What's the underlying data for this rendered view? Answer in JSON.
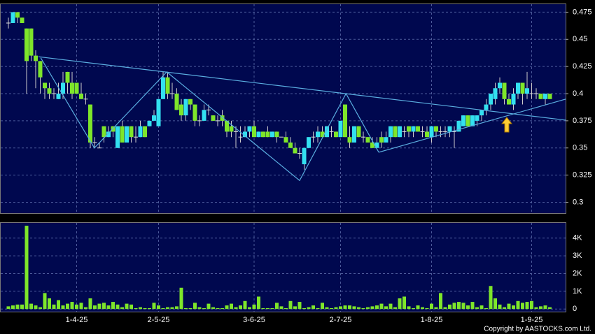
{
  "chart_data": {
    "type": "candlestick",
    "categories": [
      null,
      null,
      null,
      null,
      null,
      null,
      null,
      null,
      null,
      null,
      null,
      null,
      null,
      null,
      null,
      "1-4-25",
      null,
      null,
      null,
      null,
      null,
      null,
      null,
      null,
      null,
      null,
      null,
      null,
      null,
      null,
      null,
      null,
      null,
      "2-5-25",
      null,
      null,
      null,
      null,
      null,
      null,
      null,
      null,
      null,
      null,
      null,
      null,
      null,
      null,
      null,
      null,
      null,
      null,
      null,
      null,
      "3-6-25",
      null,
      null,
      null,
      null,
      null,
      null,
      null,
      null,
      null,
      null,
      null,
      null,
      null,
      null,
      null,
      null,
      null,
      null,
      "2-7-25",
      null,
      null,
      null,
      null,
      null,
      null,
      null,
      null,
      null,
      null,
      null,
      null,
      null,
      null,
      null,
      null,
      null,
      null,
      null,
      "1-8-25",
      null,
      null,
      null,
      null,
      null,
      null,
      null,
      null,
      null,
      null,
      null,
      null,
      null,
      null,
      null,
      null,
      null,
      null,
      null,
      null,
      null,
      "1-9-25",
      null,
      null,
      null,
      null
    ],
    "open": [
      0.465,
      0.465,
      0.475,
      0.47,
      0.46,
      0.46,
      0.435,
      0.43,
      0.41,
      0.405,
      0.4,
      0.395,
      0.4,
      0.42,
      0.41,
      0.41,
      0.4,
      0.395,
      0.39,
      0.355,
      0.35,
      0.37,
      0.36,
      0.37,
      0.35,
      0.37,
      0.355,
      0.37,
      0.36,
      0.36,
      0.37,
      0.37,
      0.375,
      0.37,
      0.395,
      0.415,
      0.4,
      0.4,
      0.39,
      0.38,
      0.395,
      0.39,
      0.375,
      0.375,
      0.385,
      0.38,
      0.375,
      0.38,
      0.375,
      0.37,
      0.365,
      0.36,
      0.36,
      0.365,
      0.37,
      0.36,
      0.365,
      0.365,
      0.36,
      0.365,
      0.36,
      0.36,
      0.355,
      0.35,
      0.345,
      0.335,
      0.35,
      0.36,
      0.36,
      0.365,
      0.36,
      0.365,
      0.365,
      0.36,
      0.39,
      0.36,
      0.355,
      0.37,
      0.36,
      0.36,
      0.355,
      0.35,
      0.36,
      0.355,
      0.36,
      0.37,
      0.36,
      0.365,
      0.37,
      0.365,
      0.37,
      0.365,
      0.365,
      0.36,
      0.37,
      0.365,
      0.365,
      0.365,
      0.365,
      0.365,
      0.37,
      0.38,
      0.37,
      0.375,
      0.38,
      0.385,
      0.39,
      0.395,
      0.405,
      0.41,
      0.395,
      0.39,
      0.4,
      0.41,
      0.4,
      0.4,
      0.4,
      0.4,
      0.395,
      0.4
    ],
    "high": [
      0.47,
      0.475,
      0.475,
      0.47,
      0.46,
      0.46,
      0.44,
      0.43,
      0.41,
      0.41,
      0.405,
      0.41,
      0.42,
      0.42,
      0.42,
      0.41,
      0.41,
      0.4,
      0.39,
      0.36,
      0.355,
      0.37,
      0.37,
      0.37,
      0.37,
      0.375,
      0.37,
      0.37,
      0.37,
      0.375,
      0.37,
      0.375,
      0.385,
      0.395,
      0.42,
      0.42,
      0.41,
      0.405,
      0.395,
      0.395,
      0.395,
      0.39,
      0.38,
      0.39,
      0.39,
      0.38,
      0.38,
      0.385,
      0.375,
      0.375,
      0.37,
      0.37,
      0.37,
      0.37,
      0.375,
      0.365,
      0.365,
      0.37,
      0.365,
      0.365,
      0.36,
      0.365,
      0.36,
      0.355,
      0.35,
      0.35,
      0.36,
      0.365,
      0.37,
      0.37,
      0.37,
      0.37,
      0.365,
      0.375,
      0.39,
      0.37,
      0.37,
      0.37,
      0.365,
      0.36,
      0.36,
      0.36,
      0.365,
      0.365,
      0.37,
      0.37,
      0.37,
      0.37,
      0.37,
      0.37,
      0.37,
      0.37,
      0.37,
      0.37,
      0.37,
      0.37,
      0.37,
      0.37,
      0.37,
      0.375,
      0.38,
      0.38,
      0.38,
      0.38,
      0.385,
      0.395,
      0.4,
      0.41,
      0.415,
      0.41,
      0.4,
      0.405,
      0.41,
      0.41,
      0.42,
      0.41,
      0.405,
      0.4,
      0.4,
      0.4
    ],
    "low": [
      0.46,
      0.465,
      0.465,
      0.465,
      0.4,
      0.43,
      0.405,
      0.4,
      0.395,
      0.395,
      0.395,
      0.395,
      0.395,
      0.4,
      0.395,
      0.4,
      0.395,
      0.39,
      0.35,
      0.35,
      0.35,
      0.355,
      0.36,
      0.36,
      0.35,
      0.355,
      0.355,
      0.355,
      0.355,
      0.36,
      0.36,
      0.37,
      0.375,
      0.37,
      0.395,
      0.395,
      0.395,
      0.385,
      0.375,
      0.375,
      0.385,
      0.37,
      0.37,
      0.375,
      0.38,
      0.375,
      0.37,
      0.37,
      0.36,
      0.36,
      0.35,
      0.355,
      0.36,
      0.36,
      0.36,
      0.36,
      0.36,
      0.36,
      0.36,
      0.355,
      0.36,
      0.355,
      0.35,
      0.345,
      0.34,
      0.33,
      0.35,
      0.355,
      0.355,
      0.36,
      0.36,
      0.36,
      0.36,
      0.36,
      0.36,
      0.35,
      0.355,
      0.36,
      0.355,
      0.355,
      0.35,
      0.35,
      0.35,
      0.355,
      0.355,
      0.36,
      0.36,
      0.36,
      0.36,
      0.36,
      0.365,
      0.36,
      0.36,
      0.355,
      0.36,
      0.36,
      0.36,
      0.36,
      0.35,
      0.365,
      0.37,
      0.37,
      0.37,
      0.37,
      0.375,
      0.38,
      0.385,
      0.39,
      0.4,
      0.39,
      0.39,
      0.385,
      0.395,
      0.39,
      0.395,
      0.395,
      0.395,
      0.395,
      0.39,
      0.395
    ],
    "close": [
      0.465,
      0.475,
      0.47,
      0.465,
      0.43,
      0.435,
      0.43,
      0.415,
      0.405,
      0.4,
      0.4,
      0.4,
      0.41,
      0.41,
      0.4,
      0.4,
      0.395,
      0.395,
      0.355,
      0.355,
      0.35,
      0.36,
      0.365,
      0.365,
      0.37,
      0.355,
      0.37,
      0.36,
      0.36,
      0.37,
      0.36,
      0.375,
      0.38,
      0.395,
      0.415,
      0.4,
      0.4,
      0.385,
      0.38,
      0.395,
      0.39,
      0.375,
      0.375,
      0.385,
      0.385,
      0.375,
      0.375,
      0.375,
      0.365,
      0.365,
      0.365,
      0.36,
      0.365,
      0.37,
      0.36,
      0.365,
      0.36,
      0.36,
      0.365,
      0.36,
      0.36,
      0.355,
      0.35,
      0.345,
      0.345,
      0.35,
      0.36,
      0.36,
      0.365,
      0.36,
      0.37,
      0.365,
      0.36,
      0.375,
      0.36,
      0.355,
      0.37,
      0.36,
      0.36,
      0.355,
      0.35,
      0.355,
      0.355,
      0.36,
      0.37,
      0.36,
      0.37,
      0.365,
      0.365,
      0.37,
      0.365,
      0.365,
      0.36,
      0.37,
      0.365,
      0.365,
      0.365,
      0.37,
      0.365,
      0.375,
      0.38,
      0.37,
      0.38,
      0.38,
      0.385,
      0.39,
      0.4,
      0.405,
      0.41,
      0.395,
      0.39,
      0.4,
      0.41,
      0.4,
      0.405,
      0.4,
      0.4,
      0.395,
      0.4,
      0.395
    ],
    "up_color": "#33e0f0",
    "down_color": "#7ee62a",
    "flat_color": "#dddddd",
    "ylim": [
      0.29,
      0.483
    ],
    "yticks": [
      0.3,
      0.325,
      0.35,
      0.375,
      0.4,
      0.425,
      0.45,
      0.475
    ],
    "grid": true,
    "trendlines": [
      {
        "color": "#5aaee0",
        "x": [
          7.1,
          18.9,
          34.8,
          64,
          74.2,
          81.4
        ],
        "y": [
          0.433,
          0.35,
          0.42,
          0.32,
          0.4,
          0.346
        ]
      },
      {
        "color": "#5aaee0",
        "x": [
          6.6,
          122.5
        ],
        "y": [
          0.434,
          0.3756
        ]
      },
      {
        "color": "#5aaee0",
        "x": [
          81.4,
          122.5
        ],
        "y": [
          0.346,
          0.395
        ]
      }
    ],
    "volume": {
      "type": "bar",
      "color": "#7ee62a",
      "ylim": [
        -150,
        4900
      ],
      "yticks": [
        0,
        {
          "value": 1000,
          "label": "1K"
        },
        {
          "value": 2000,
          "label": "2K"
        },
        {
          "value": 3000,
          "label": "3K"
        },
        {
          "value": 4000,
          "label": "4K"
        }
      ],
      "values": [
        150,
        200,
        250,
        250,
        4700,
        300,
        200,
        100,
        900,
        600,
        250,
        500,
        200,
        300,
        400,
        250,
        350,
        100,
        600,
        200,
        300,
        350,
        200,
        400,
        250,
        100,
        300,
        250,
        50,
        100,
        50,
        50,
        350,
        200,
        50,
        100,
        100,
        150,
        1200,
        50,
        50,
        350,
        100,
        50,
        300,
        100,
        50,
        50,
        200,
        300,
        100,
        200,
        450,
        100,
        250,
        700,
        50,
        50,
        50,
        350,
        150,
        50,
        450,
        150,
        400,
        50,
        100,
        200,
        50,
        350,
        100,
        50,
        100,
        150,
        200,
        200,
        150,
        100,
        50,
        100,
        150,
        200,
        300,
        150,
        300,
        100,
        600,
        700,
        150,
        50,
        200,
        100,
        50,
        300,
        100,
        900,
        100,
        250,
        350,
        400,
        350,
        200,
        400,
        100,
        200,
        50,
        1300,
        600,
        250,
        100,
        300,
        200,
        450,
        350,
        400,
        450,
        100,
        150,
        200,
        100
      ]
    },
    "copyright": "Copyright by AASTOCKS.com Ltd."
  }
}
